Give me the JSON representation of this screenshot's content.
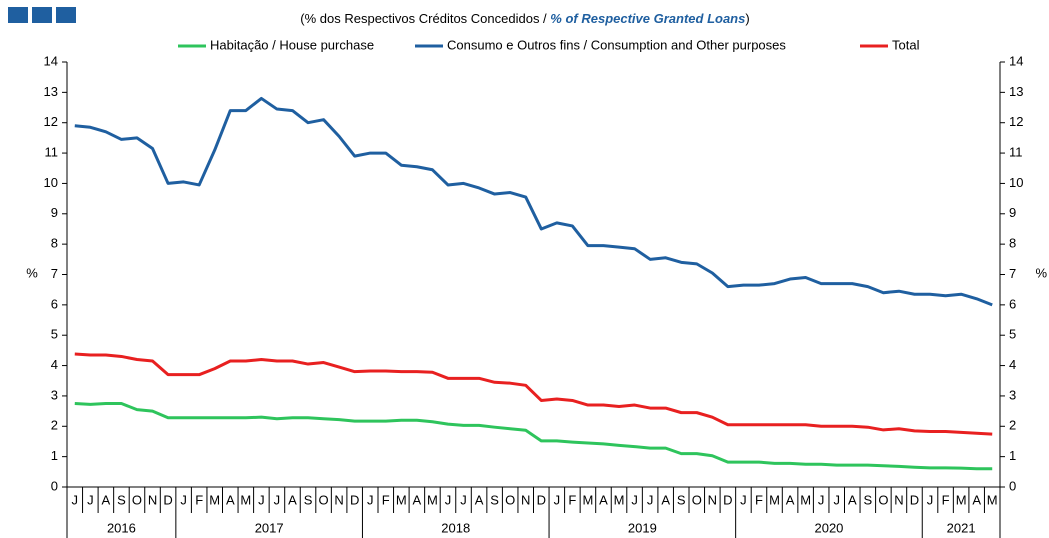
{
  "chart_data": {
    "type": "line",
    "subtitle": [
      "(% dos Respectivos Créditos Concedidos / ",
      "% of Respective Granted Loans",
      ")"
    ],
    "ylabel": "%",
    "y2label": "%",
    "categories": [
      "J",
      "J",
      "A",
      "S",
      "O",
      "N",
      "D",
      "J",
      "F",
      "M",
      "A",
      "M",
      "J",
      "J",
      "A",
      "S",
      "O",
      "N",
      "D",
      "J",
      "F",
      "M",
      "A",
      "M",
      "J",
      "J",
      "A",
      "S",
      "O",
      "N",
      "D",
      "J",
      "F",
      "M",
      "A",
      "M",
      "J",
      "J",
      "A",
      "S",
      "O",
      "N",
      "D",
      "J",
      "F",
      "M",
      "A",
      "M",
      "J",
      "J",
      "A",
      "S",
      "O",
      "N",
      "D",
      "J",
      "F",
      "M",
      "A",
      "M"
    ],
    "years": [
      "2016",
      "2017",
      "2018",
      "2019",
      "2020",
      "2021"
    ],
    "ylim": [
      0,
      14
    ],
    "yticks": [
      0,
      1,
      2,
      3,
      4,
      5,
      6,
      7,
      8,
      9,
      10,
      11,
      12,
      13,
      14
    ],
    "y2lim": [
      0,
      14
    ],
    "y2ticks": [
      0,
      1,
      2,
      3,
      4,
      5,
      6,
      7,
      8,
      9,
      10,
      11,
      12,
      13,
      14
    ],
    "series": [
      {
        "name": "Habitação / House purchase",
        "color": "#2ec45c",
        "values": [
          2.75,
          2.72,
          2.75,
          2.75,
          2.55,
          2.5,
          2.28,
          2.28,
          2.28,
          2.28,
          2.28,
          2.28,
          2.3,
          2.25,
          2.28,
          2.28,
          2.25,
          2.22,
          2.17,
          2.17,
          2.17,
          2.2,
          2.2,
          2.15,
          2.07,
          2.03,
          2.03,
          1.97,
          1.92,
          1.87,
          1.52,
          1.52,
          1.48,
          1.45,
          1.42,
          1.37,
          1.33,
          1.28,
          1.28,
          1.1,
          1.1,
          1.03,
          0.82,
          0.82,
          0.82,
          0.78,
          0.78,
          0.75,
          0.75,
          0.72,
          0.72,
          0.72,
          0.7,
          0.68,
          0.65,
          0.63,
          0.63,
          0.62,
          0.6,
          0.6
        ]
      },
      {
        "name": "Consumo e Outros fins / Consumption and Other purposes",
        "color": "#1f5fa0",
        "values": [
          11.9,
          11.85,
          11.7,
          11.45,
          11.5,
          11.15,
          10.0,
          10.05,
          9.95,
          11.1,
          12.4,
          12.4,
          12.8,
          12.45,
          12.4,
          12.0,
          12.1,
          11.55,
          10.9,
          11.0,
          11.0,
          10.6,
          10.55,
          10.45,
          9.95,
          10.0,
          9.85,
          9.65,
          9.7,
          9.55,
          8.5,
          8.7,
          8.6,
          7.95,
          7.95,
          7.9,
          7.85,
          7.5,
          7.55,
          7.4,
          7.35,
          7.05,
          6.6,
          6.65,
          6.65,
          6.7,
          6.85,
          6.9,
          6.7,
          6.7,
          6.7,
          6.6,
          6.4,
          6.45,
          6.35,
          6.35,
          6.3,
          6.35,
          6.2,
          6.0
        ]
      },
      {
        "name": "Total",
        "color": "#e82020",
        "values": [
          4.38,
          4.35,
          4.35,
          4.3,
          4.2,
          4.15,
          3.7,
          3.7,
          3.7,
          3.9,
          4.15,
          4.15,
          4.2,
          4.15,
          4.15,
          4.05,
          4.1,
          3.95,
          3.8,
          3.82,
          3.82,
          3.8,
          3.8,
          3.78,
          3.58,
          3.58,
          3.58,
          3.45,
          3.42,
          3.35,
          2.85,
          2.9,
          2.85,
          2.7,
          2.7,
          2.65,
          2.7,
          2.6,
          2.6,
          2.45,
          2.45,
          2.3,
          2.05,
          2.05,
          2.05,
          2.05,
          2.05,
          2.05,
          2.0,
          2.0,
          2.0,
          1.97,
          1.88,
          1.92,
          1.85,
          1.83,
          1.83,
          1.8,
          1.77,
          1.74
        ]
      }
    ]
  }
}
